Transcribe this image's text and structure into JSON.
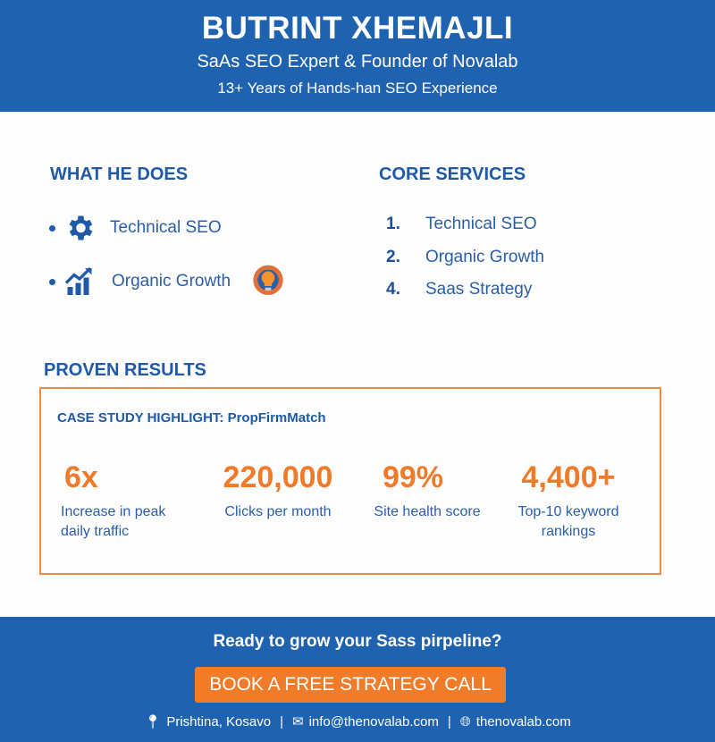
{
  "header": {
    "name": "BUTRINT XHEMAJLI",
    "subtitle": "SaAs SEO Expert & Founder of Novalab",
    "tagline": "13+ Years of Hands-han SEO Experience"
  },
  "what_he_does": {
    "title": "WHAT HE DOES",
    "items": [
      {
        "label": "Technical SEO",
        "icon": "gear-icon"
      },
      {
        "label": "Organic Growth",
        "icon": "growth-chart-icon"
      }
    ],
    "extra_icon": "lightbulb-gear-icon"
  },
  "core_services": {
    "title": "CORE SERVICES",
    "items": [
      {
        "num": "1.",
        "label": "Technical SEO"
      },
      {
        "num": "2.",
        "label": "Organic Growth"
      },
      {
        "num": "4.",
        "label": "Saas Strategy"
      }
    ]
  },
  "results": {
    "title": "PROVEN RESULTS",
    "case_study": "CASE STUDY HIGHLIGHT: PropFirmMatch",
    "stats": [
      {
        "value": "6x",
        "label": "Increase in peak daily traffic"
      },
      {
        "value": "220,000",
        "label": "Clicks per month"
      },
      {
        "value": "99%",
        "label": "Site health score"
      },
      {
        "value": "4,400+",
        "label": "Top-10 keyword rankings"
      }
    ]
  },
  "footer": {
    "cta": "Ready to grow your Sass pirpeline?",
    "button": "BOOK A FREE STRATEGY CALL",
    "location": "Prishtina, Kosavo",
    "email": "info@thenovalab.com",
    "website": "thenovalab.com"
  },
  "colors": {
    "blue": "#1f63b0",
    "orange": "#f07c2a"
  }
}
